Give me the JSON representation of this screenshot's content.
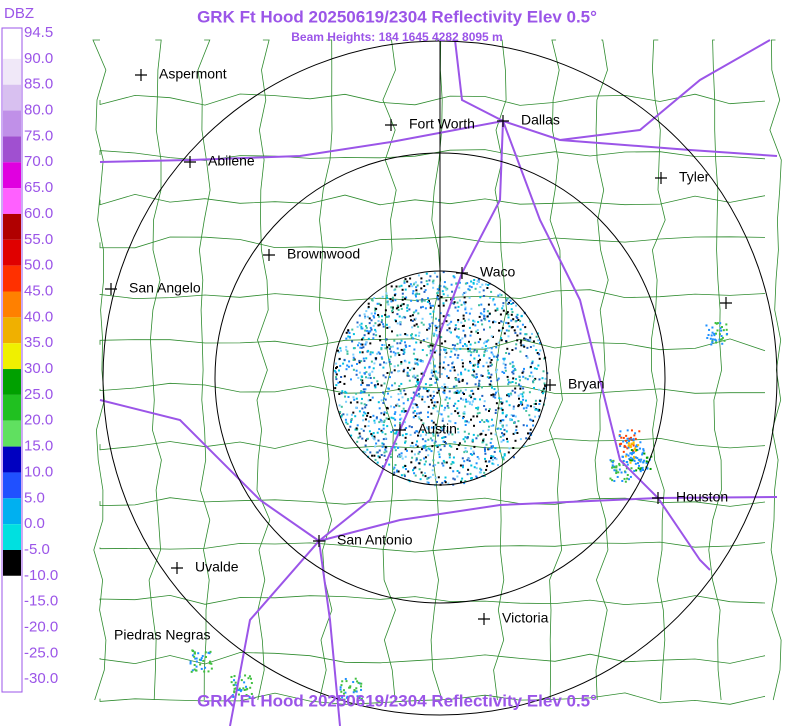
{
  "header": {
    "title": "GRK Ft Hood 20250619/2304 Reflectivity Elev 0.5°",
    "subtitle": "Beam Heights: 184 1645 4282 8095 m"
  },
  "legend": {
    "unit": "DBZ",
    "labels": [
      "94.5",
      "90.0",
      "85.0",
      "80.0",
      "75.0",
      "70.0",
      "65.0",
      "60.0",
      "55.0",
      "50.0",
      "45.0",
      "40.0",
      "35.0",
      "30.0",
      "25.0",
      "20.0",
      "15.0",
      "10.0",
      "5.0",
      "0.0",
      "-5.0",
      "-10.0",
      "-15.0",
      "-20.0",
      "-25.0",
      "-30.0"
    ]
  },
  "cities": [
    "Aspermont",
    "Fort Worth",
    "Dallas",
    "Abilene",
    "Tyler",
    "Brownwood",
    "Waco",
    "San Angelo",
    "Bryan",
    "Austin",
    "Houston",
    "San Antonio",
    "Uvalde",
    "Victoria",
    "Piedras Negras"
  ],
  "footer": {
    "title": "GRK Ft Hood 20250619/2304 Reflectivity Elev 0.5°"
  }
}
